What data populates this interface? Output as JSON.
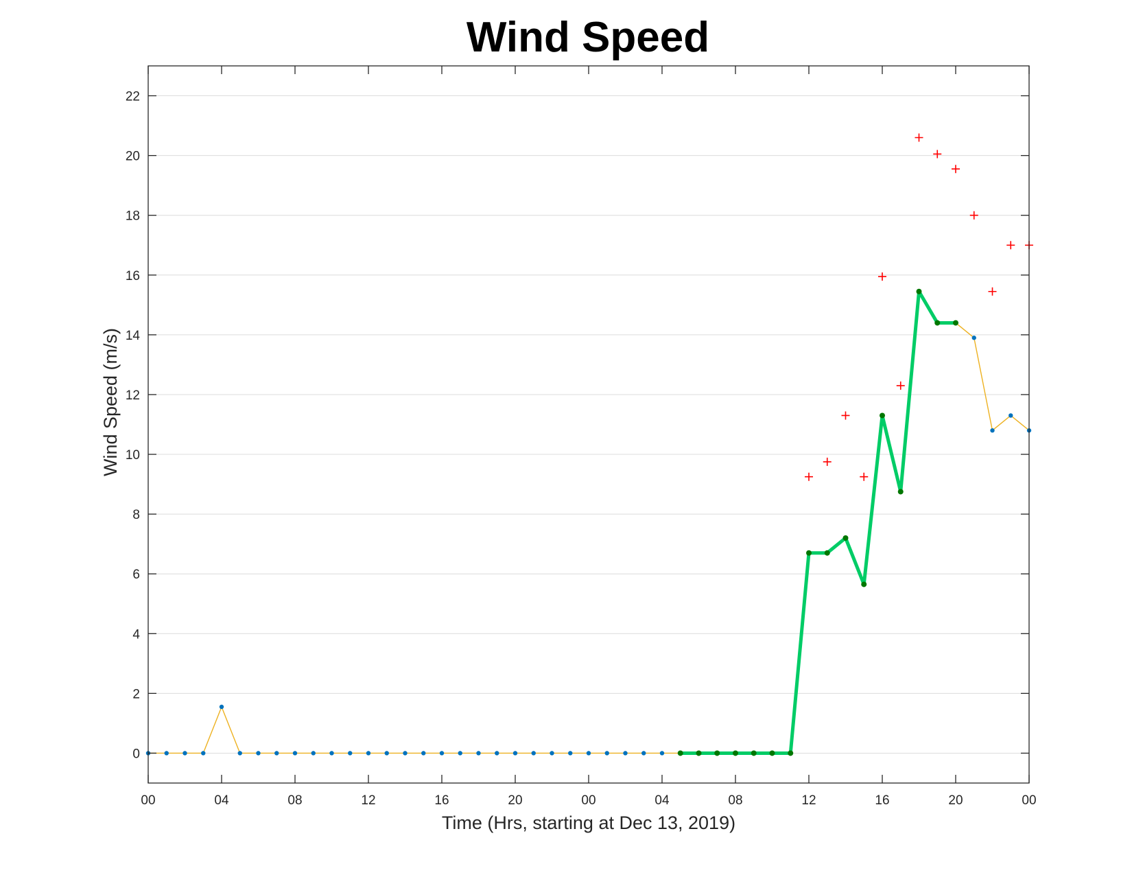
{
  "chart_data": {
    "type": "line",
    "title": "Wind Speed",
    "xlabel": "Time (Hrs, starting at Dec 13, 2019)",
    "ylabel": "Wind Speed (m/s)",
    "xlim": [
      0,
      48
    ],
    "ylim": [
      -1,
      23
    ],
    "grid": "y",
    "x_tick_values": [
      0,
      4,
      8,
      12,
      16,
      20,
      24,
      28,
      32,
      36,
      40,
      44,
      48
    ],
    "x_tick_labels": [
      "00",
      "04",
      "08",
      "12",
      "16",
      "20",
      "00",
      "04",
      "08",
      "12",
      "16",
      "20",
      "00"
    ],
    "y_ticks": [
      0,
      2,
      4,
      6,
      8,
      10,
      12,
      14,
      16,
      18,
      20,
      22
    ],
    "series": [
      {
        "style": "thin-line-dots",
        "line_color": "#EDB120",
        "marker_color": "#0072BD",
        "x": [
          0,
          1,
          2,
          3,
          4,
          5,
          6,
          7,
          8,
          9,
          10,
          11,
          12,
          13,
          14,
          15,
          16,
          17,
          18,
          19,
          20,
          21,
          22,
          23,
          24,
          25,
          26,
          27,
          28,
          29,
          30,
          31,
          32,
          33,
          34,
          35,
          36,
          37,
          38,
          39,
          40,
          41,
          42,
          43,
          44,
          45,
          46,
          47,
          48
        ],
        "values": [
          0,
          0,
          0,
          0,
          1.55,
          0,
          0,
          0,
          0,
          0,
          0,
          0,
          0,
          0,
          0,
          0,
          0,
          0,
          0,
          0,
          0,
          0,
          0,
          0,
          0,
          0,
          0,
          0,
          0,
          0,
          0,
          0,
          0,
          0,
          0,
          0,
          6.7,
          6.7,
          7.2,
          5.65,
          11.3,
          8.75,
          15.45,
          14.4,
          14.4,
          13.9,
          10.8,
          11.3,
          10.8
        ]
      },
      {
        "style": "thick-line-dots",
        "line_color": "#00CC66",
        "marker_color": "#007700",
        "x": [
          29,
          30,
          31,
          32,
          33,
          34,
          35,
          36,
          37,
          38,
          39,
          40,
          41,
          42,
          43,
          44
        ],
        "values": [
          0,
          0,
          0,
          0,
          0,
          0,
          0,
          6.7,
          6.7,
          7.2,
          5.65,
          11.3,
          8.75,
          15.45,
          14.4,
          14.4
        ]
      },
      {
        "style": "plus-markers",
        "marker_color": "#FF0000",
        "x": [
          36,
          37,
          38,
          39,
          40,
          41,
          42,
          43,
          44,
          45,
          46,
          47,
          48
        ],
        "values": [
          9.25,
          9.75,
          11.3,
          9.25,
          15.95,
          12.3,
          20.6,
          20.05,
          19.55,
          18.0,
          15.45,
          17.0,
          17.0
        ]
      }
    ]
  }
}
